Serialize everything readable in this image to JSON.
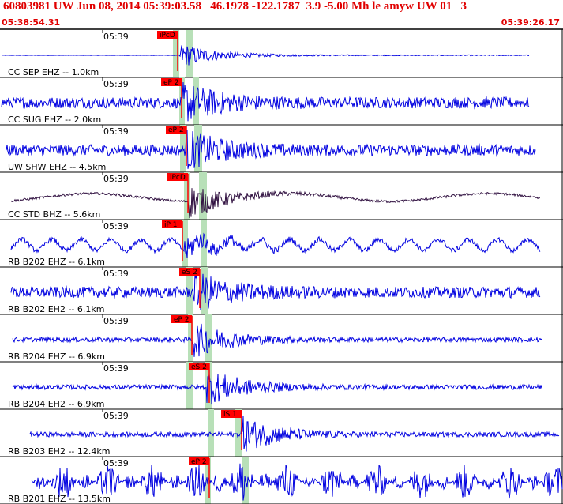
{
  "header": {
    "title": "60803981 UW Jun 08, 2014 05:39:03.58   46.1978 -122.1787  3.9 -5.00 Mh le amyw UW 01   3",
    "time_start": "05:38:54.31",
    "time_end": "05:39:26.17"
  },
  "colors": {
    "header_text": "#e00000",
    "trace_blue": "#0000e0",
    "trace_dark": "#301040",
    "pick_red": "#ff0000",
    "pick_window_green": "#b8e0b8",
    "panel_border": "#000000"
  },
  "tick_label": "05:39",
  "traces": [
    {
      "station": "CC SEP EHZ -- 1.0km",
      "pick": "iPcD",
      "style": "quiet",
      "color": "blue"
    },
    {
      "station": "CC SUG EHZ -- 2.0km",
      "pick": "eP 2",
      "style": "noisy",
      "color": "blue"
    },
    {
      "station": "UW SHW EHZ -- 4.5km",
      "pick": "eP 2",
      "style": "noisy",
      "color": "blue"
    },
    {
      "station": "CC STD BHZ -- 5.6km",
      "pick": "iPcD",
      "style": "long",
      "color": "dark"
    },
    {
      "station": "RB B202 EHZ -- 6.1km",
      "pick": "iP 1",
      "style": "wavy",
      "color": "blue"
    },
    {
      "station": "RB B202 EH2 -- 6.1km",
      "pick": "eS 2",
      "style": "noisy",
      "color": "blue"
    },
    {
      "station": "RB B204 EHZ -- 6.9km",
      "pick": "eP 2",
      "style": "quietnoise",
      "color": "blue"
    },
    {
      "station": "RB B204 EH2 -- 6.9km",
      "pick": "eS 2",
      "style": "quietnoise",
      "color": "blue"
    },
    {
      "station": "RB B203 EH2 -- 12.4km",
      "pick": "iS 1",
      "style": "quietnoise",
      "color": "blue"
    },
    {
      "station": "RB B201 EHZ -- 13.5km",
      "pick": "eP 2",
      "style": "loud",
      "color": "blue"
    }
  ]
}
